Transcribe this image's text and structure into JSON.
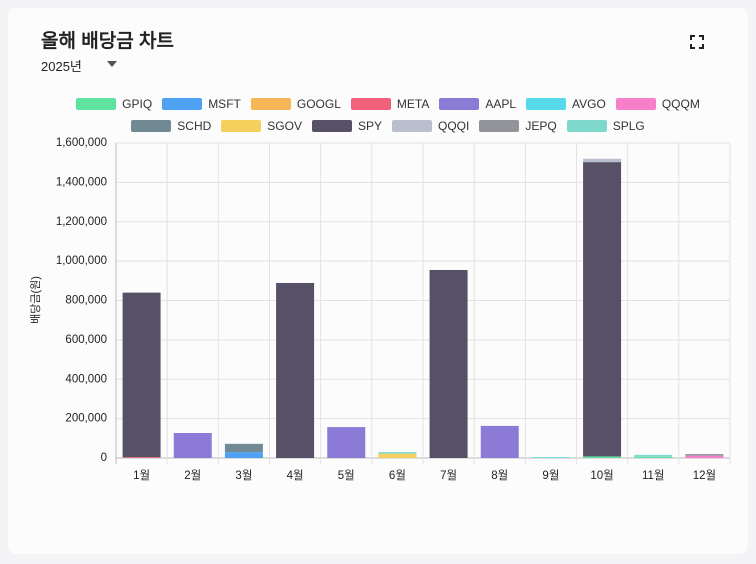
{
  "header": {
    "title": "올해 배당금 차트",
    "year": "2025년"
  },
  "chart_data": {
    "type": "stacked_bar",
    "y_label": "배당금(원)",
    "categories": [
      "1월",
      "2월",
      "3월",
      "4월",
      "5월",
      "6월",
      "7월",
      "8월",
      "9월",
      "10월",
      "11월",
      "12월"
    ],
    "ylim": [
      0,
      1600000
    ],
    "yticks": [
      {
        "value": 0,
        "label": "0"
      },
      {
        "value": 200000,
        "label": "200,000"
      },
      {
        "value": 400000,
        "label": "400,000"
      },
      {
        "value": 600000,
        "label": "600,000"
      },
      {
        "value": 800000,
        "label": "800,000"
      },
      {
        "value": 1000000,
        "label": "1,000,000"
      },
      {
        "value": 1200000,
        "label": "1,200,000"
      },
      {
        "value": 1400000,
        "label": "1,400,000"
      },
      {
        "value": 1600000,
        "label": "1,600,000"
      }
    ],
    "grid": true,
    "series": [
      {
        "name": "GPIQ",
        "color": "#5ee3a1",
        "values": [
          0,
          0,
          0,
          0,
          0,
          0,
          0,
          0,
          0,
          8000,
          6000,
          0
        ]
      },
      {
        "name": "MSFT",
        "color": "#4fa2f3",
        "values": [
          0,
          0,
          30000,
          0,
          0,
          0,
          0,
          0,
          0,
          0,
          0,
          0
        ]
      },
      {
        "name": "GOOGL",
        "color": "#f7b655",
        "values": [
          0,
          0,
          0,
          0,
          0,
          0,
          0,
          0,
          0,
          0,
          0,
          0
        ]
      },
      {
        "name": "META",
        "color": "#f4617b",
        "values": [
          4000,
          0,
          0,
          0,
          0,
          0,
          0,
          0,
          0,
          0,
          0,
          0
        ]
      },
      {
        "name": "AAPL",
        "color": "#8c7bd6",
        "values": [
          0,
          127000,
          0,
          0,
          157000,
          0,
          0,
          163000,
          0,
          0,
          0,
          0
        ]
      },
      {
        "name": "AVGO",
        "color": "#56d9ea",
        "values": [
          0,
          0,
          0,
          0,
          0,
          0,
          0,
          0,
          4000,
          0,
          0,
          0
        ]
      },
      {
        "name": "QQQM",
        "color": "#f77fc9",
        "values": [
          0,
          0,
          0,
          0,
          0,
          0,
          0,
          0,
          0,
          0,
          0,
          12000
        ]
      },
      {
        "name": "SCHD",
        "color": "#728a93",
        "values": [
          0,
          0,
          42000,
          0,
          0,
          0,
          0,
          0,
          0,
          0,
          0,
          0
        ]
      },
      {
        "name": "SGOV",
        "color": "#f6d05c",
        "values": [
          0,
          0,
          0,
          0,
          0,
          22000,
          0,
          0,
          0,
          0,
          0,
          0
        ]
      },
      {
        "name": "SPY",
        "color": "#575066",
        "values": [
          836000,
          0,
          0,
          889000,
          0,
          0,
          955000,
          0,
          0,
          1495000,
          0,
          0
        ]
      },
      {
        "name": "QQQI",
        "color": "#b9bfcc",
        "values": [
          0,
          0,
          0,
          0,
          0,
          0,
          0,
          0,
          0,
          17000,
          0,
          0
        ]
      },
      {
        "name": "JEPQ",
        "color": "#93949b",
        "values": [
          0,
          0,
          0,
          0,
          0,
          0,
          0,
          0,
          0,
          0,
          0,
          8000
        ]
      },
      {
        "name": "SPLG",
        "color": "#7fd8cc",
        "values": [
          0,
          0,
          0,
          0,
          0,
          8000,
          0,
          0,
          0,
          0,
          10000,
          0
        ]
      }
    ]
  }
}
